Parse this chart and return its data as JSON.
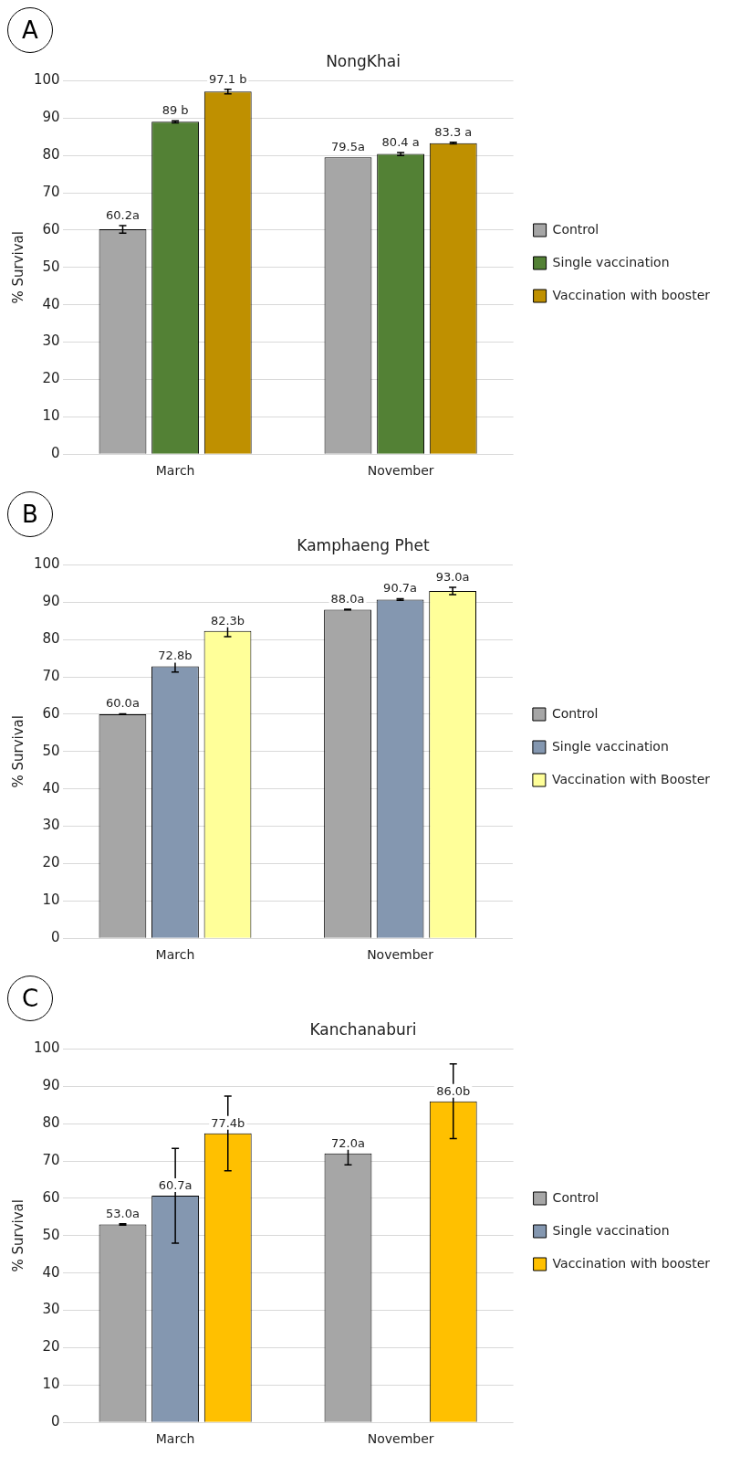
{
  "chart_data": [
    {
      "type": "bar",
      "title": "NongKhai",
      "ylabel": "% Survival",
      "annotations": [
        "A"
      ],
      "categories": [
        "March",
        "November"
      ],
      "ylim": [
        0,
        100
      ],
      "yticks": [
        0,
        10,
        20,
        30,
        40,
        50,
        60,
        70,
        80,
        90,
        100
      ],
      "grid": "y",
      "legend": "right",
      "series": [
        {
          "name": "Control",
          "color": "#a6a6a6",
          "values": [
            60.2,
            79.5
          ],
          "errors": [
            1,
            null
          ],
          "value_labels": [
            "60.2a",
            "79.5a"
          ]
        },
        {
          "name": "Single vaccination",
          "color": "#538135",
          "values": [
            89,
            80.4
          ],
          "errors": [
            0.3,
            0.4
          ],
          "value_labels": [
            "89 b",
            "80.4 a"
          ]
        },
        {
          "name": "Vaccination with booster",
          "color": "#bf9000",
          "values": [
            97.1,
            83.3
          ],
          "errors": [
            0.6,
            0.2
          ],
          "value_labels": [
            "97.1 b",
            "83.3 a"
          ]
        }
      ]
    },
    {
      "type": "bar",
      "title": "Kamphaeng Phet",
      "ylabel": "% Survival",
      "annotations": [
        "B"
      ],
      "categories": [
        "March",
        "November"
      ],
      "ylim": [
        0,
        100
      ],
      "yticks": [
        0,
        10,
        20,
        30,
        40,
        50,
        60,
        70,
        80,
        90,
        100
      ],
      "grid": "y",
      "legend": "right",
      "series": [
        {
          "name": "Control",
          "color": "#a6a6a6",
          "values": [
            60.0,
            88.0
          ],
          "errors": [
            0.1,
            0.1
          ],
          "value_labels": [
            "60.0a",
            "88.0a"
          ]
        },
        {
          "name": "Single vaccination",
          "color": "#8497b0",
          "values": [
            72.8,
            90.7
          ],
          "errors": [
            1.5,
            0.2
          ],
          "value_labels": [
            "72.8b",
            "90.7a"
          ]
        },
        {
          "name": "Vaccination with Booster",
          "color": "#ffff99",
          "values": [
            82.3,
            93.0
          ],
          "errors": [
            1.5,
            1
          ],
          "value_labels": [
            "82.3b",
            "93.0a"
          ]
        }
      ]
    },
    {
      "type": "bar",
      "title": "Kanchanaburi",
      "ylabel": "% Survival",
      "annotations": [
        "C"
      ],
      "categories": [
        "March",
        "November"
      ],
      "ylim": [
        0,
        100
      ],
      "yticks": [
        0,
        10,
        20,
        30,
        40,
        50,
        60,
        70,
        80,
        90,
        100
      ],
      "grid": "y",
      "legend": "right",
      "series": [
        {
          "name": "Control",
          "color": "#a6a6a6",
          "values": [
            53.0,
            72.0
          ],
          "errors": [
            0.2,
            3
          ],
          "value_labels": [
            "53.0a",
            "72.0a"
          ]
        },
        {
          "name": "Single vaccination",
          "color": "#8497b0",
          "values": [
            60.7,
            null
          ],
          "errors": [
            12.7,
            null
          ],
          "value_labels": [
            "60.7a",
            null
          ]
        },
        {
          "name": "Vaccination with booster",
          "color": "#ffc000",
          "values": [
            77.4,
            86.0
          ],
          "errors": [
            10,
            10
          ],
          "value_labels": [
            "77.4b",
            "86.0b"
          ]
        }
      ]
    }
  ]
}
